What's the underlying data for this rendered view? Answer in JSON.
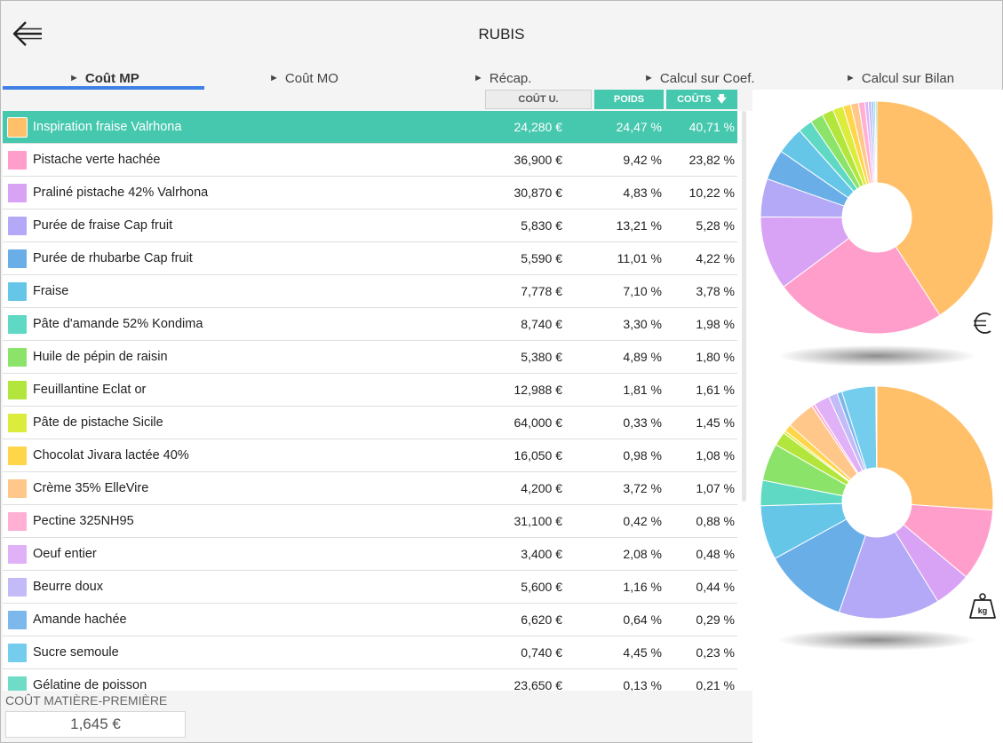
{
  "header": {
    "title": "RUBIS"
  },
  "tabs": [
    {
      "label": "Coût MP"
    },
    {
      "label": "Coût MO"
    },
    {
      "label": "Récap."
    },
    {
      "label": "Calcul sur Coef."
    },
    {
      "label": "Calcul sur Bilan"
    }
  ],
  "columns": {
    "cout_u": "COÛT U.",
    "poids": "POIDS",
    "couts": "COÛTS"
  },
  "rows": [
    {
      "name": "Inspiration fraise Valrhona",
      "cout": "24,280 €",
      "poids": "24,47 %",
      "couts": "40,71 %",
      "color": "#ffc069",
      "weight": 24.47,
      "cost": 40.71
    },
    {
      "name": "Pistache verte hachée",
      "cout": "36,900 €",
      "poids": "9,42 %",
      "couts": "23,82 %",
      "color": "#ff9ecb",
      "weight": 9.42,
      "cost": 23.82
    },
    {
      "name": "Praliné pistache 42% Valrhona",
      "cout": "30,870 €",
      "poids": "4,83 %",
      "couts": "10,22 %",
      "color": "#d9a3f5",
      "weight": 4.83,
      "cost": 10.22
    },
    {
      "name": "Purée de fraise Cap fruit",
      "cout": "5,830 €",
      "poids": "13,21 %",
      "couts": "5,28 %",
      "color": "#b3a9f7",
      "weight": 13.21,
      "cost": 5.28
    },
    {
      "name": "Purée de rhubarbe Cap fruit",
      "cout": "5,590 €",
      "poids": "11,01 %",
      "couts": "4,22 %",
      "color": "#6aaee8",
      "weight": 11.01,
      "cost": 4.22
    },
    {
      "name": "Fraise",
      "cout": "7,778 €",
      "poids": "7,10 %",
      "couts": "3,78 %",
      "color": "#66c6e8",
      "weight": 7.1,
      "cost": 3.78
    },
    {
      "name": "Pâte d'amande 52% Kondima",
      "cout": "8,740 €",
      "poids": "3,30 %",
      "couts": "1,98 %",
      "color": "#5fd9c4",
      "weight": 3.3,
      "cost": 1.98
    },
    {
      "name": "Huile de pépin de raisin",
      "cout": "5,380 €",
      "poids": "4,89 %",
      "couts": "1,80 %",
      "color": "#8ce36a",
      "weight": 4.89,
      "cost": 1.8
    },
    {
      "name": "Feuillantine Eclat or",
      "cout": "12,988 €",
      "poids": "1,81 %",
      "couts": "1,61 %",
      "color": "#b3e63c",
      "weight": 1.81,
      "cost": 1.61
    },
    {
      "name": "Pâte de pistache Sicile",
      "cout": "64,000 €",
      "poids": "0,33 %",
      "couts": "1,45 %",
      "color": "#dcec3c",
      "weight": 0.33,
      "cost": 1.45
    },
    {
      "name": "Chocolat Jivara lactée 40%",
      "cout": "16,050 €",
      "poids": "0,98 %",
      "couts": "1,08 %",
      "color": "#ffd54a",
      "weight": 0.98,
      "cost": 1.08
    },
    {
      "name": "Crème 35% ElleVire",
      "cout": "4,200 €",
      "poids": "3,72 %",
      "couts": "1,07 %",
      "color": "#ffc78a",
      "weight": 3.72,
      "cost": 1.07
    },
    {
      "name": "Pectine 325NH95",
      "cout": "31,100 €",
      "poids": "0,42 %",
      "couts": "0,88 %",
      "color": "#ffb0d3",
      "weight": 0.42,
      "cost": 0.88
    },
    {
      "name": "Oeuf entier",
      "cout": "3,400 €",
      "poids": "2,08 %",
      "couts": "0,48 %",
      "color": "#e0b1f7",
      "weight": 2.08,
      "cost": 0.48
    },
    {
      "name": "Beurre doux",
      "cout": "5,600 €",
      "poids": "1,16 %",
      "couts": "0,44 %",
      "color": "#c2bbf7",
      "weight": 1.16,
      "cost": 0.44
    },
    {
      "name": "Amande hachée",
      "cout": "6,620 €",
      "poids": "0,64 %",
      "couts": "0,29 %",
      "color": "#7db8ec",
      "weight": 0.64,
      "cost": 0.29
    },
    {
      "name": "Sucre semoule",
      "cout": "0,740 €",
      "poids": "4,45 %",
      "couts": "0,23 %",
      "color": "#74cdec",
      "weight": 4.45,
      "cost": 0.23
    },
    {
      "name": "Gélatine de poisson",
      "cout": "23,650 €",
      "poids": "0,13 %",
      "couts": "0,21 %",
      "color": "#6fdcc8",
      "weight": 0.13,
      "cost": 0.21
    }
  ],
  "footer": {
    "label": "COÛT MATIÈRE-PREMIÈRE",
    "value": "1,645 €"
  },
  "icons": {
    "back": "back-arrow-icon",
    "currency": "euro-icon",
    "weight": "kg-weight-icon"
  }
}
